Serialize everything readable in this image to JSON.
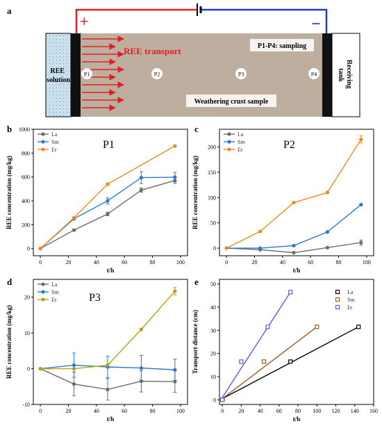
{
  "colors": {
    "la": "#6d6d6d",
    "sm": "#2a78d2",
    "er": "#f08a1c",
    "er_p3": "#b8a20a",
    "black": "#000000",
    "sm_e": "#9a5a22",
    "er_e": "#5a5ae6",
    "plus": "#e02020",
    "minus": "#1e3cc8"
  },
  "diagram": {
    "panel_label": "a",
    "plus": "+",
    "minus": "−",
    "ree_solution": "REE solution",
    "receiving_tank": "Receiving tank",
    "ree_transport": "REE transport",
    "sampling": "P1-P4: sampling",
    "sample": "Weathering crust sample",
    "points": [
      "P1",
      "P2",
      "P3",
      "P4"
    ]
  },
  "chart_data": [
    {
      "panel": "b",
      "type": "line",
      "title": "P1",
      "xlabel": "t/h",
      "ylabel": "REE concentration (mg/kg)",
      "xlim": [
        -5,
        105
      ],
      "ylim": [
        -60,
        1000
      ],
      "xticks": [
        0,
        20,
        40,
        60,
        80,
        100
      ],
      "yticks": [
        0,
        200,
        400,
        600,
        800,
        1000
      ],
      "legend": "top-left",
      "series": [
        {
          "name": "La",
          "x": [
            0,
            24,
            48,
            72,
            96
          ],
          "y": [
            0,
            155,
            290,
            490,
            570
          ],
          "err": [
            0,
            8,
            15,
            18,
            25
          ]
        },
        {
          "name": "Sm",
          "x": [
            0,
            24,
            48,
            72,
            96
          ],
          "y": [
            0,
            250,
            400,
            595,
            598
          ],
          "err": [
            0,
            10,
            25,
            50,
            40
          ]
        },
        {
          "name": "Er",
          "x": [
            0,
            24,
            48,
            72,
            96
          ],
          "y": [
            0,
            258,
            540,
            0,
            860
          ],
          "err": [
            0,
            8,
            10,
            0,
            8
          ],
          "skip": [
            3
          ]
        }
      ]
    },
    {
      "panel": "c",
      "type": "line",
      "title": "P2",
      "xlabel": "t/h",
      "ylabel": "REE concentration (mg/kg)",
      "xlim": [
        -5,
        105
      ],
      "ylim": [
        -15,
        235
      ],
      "xticks": [
        0,
        20,
        40,
        60,
        80,
        100
      ],
      "yticks": [
        0,
        50,
        100,
        150,
        200
      ],
      "legend": "top-left",
      "series": [
        {
          "name": "La",
          "x": [
            0,
            24,
            48,
            72,
            96
          ],
          "y": [
            0,
            -3,
            -9,
            1,
            11
          ],
          "err": [
            0,
            1,
            1,
            1,
            5
          ]
        },
        {
          "name": "Sm",
          "x": [
            0,
            24,
            48,
            72,
            96
          ],
          "y": [
            0,
            0,
            5,
            32,
            86
          ],
          "err": [
            0,
            1,
            1,
            1,
            2
          ]
        },
        {
          "name": "Er",
          "x": [
            0,
            24,
            48,
            72,
            96
          ],
          "y": [
            0,
            33,
            90,
            110,
            215
          ],
          "err": [
            0,
            1,
            1,
            1,
            7
          ]
        }
      ]
    },
    {
      "panel": "d",
      "type": "line",
      "title": "P3",
      "xlabel": "t/h",
      "ylabel": "REE concentration (mg/kg)",
      "xlim": [
        -5,
        105
      ],
      "ylim": [
        -10,
        25
      ],
      "xticks": [
        0,
        20,
        40,
        60,
        80,
        100
      ],
      "yticks": [
        -10,
        0,
        10,
        20
      ],
      "legend": "top-left",
      "series": [
        {
          "name": "La",
          "x": [
            0,
            24,
            48,
            72,
            96
          ],
          "y": [
            0,
            -4.3,
            -5.8,
            -3.5,
            -3.6
          ],
          "err": [
            0,
            3.3,
            3,
            3,
            3
          ]
        },
        {
          "name": "Sm",
          "x": [
            0,
            24,
            48,
            72,
            96
          ],
          "y": [
            0,
            1,
            0.5,
            0.2,
            -0.3
          ],
          "err": [
            0,
            3.4,
            3,
            3.5,
            3
          ]
        },
        {
          "name": "Er",
          "x": [
            0,
            24,
            48,
            72,
            96
          ],
          "y": [
            0,
            0,
            1,
            11,
            21.7
          ],
          "err": [
            0,
            0.2,
            0.3,
            0.3,
            1
          ]
        }
      ]
    },
    {
      "panel": "e",
      "type": "scatter",
      "title": "",
      "xlabel": "t/h",
      "ylabel": "Transport distance (cm)",
      "xlim": [
        -3,
        160
      ],
      "ylim": [
        -2,
        52
      ],
      "xticks": [
        0,
        20,
        40,
        60,
        80,
        100,
        120,
        140,
        160
      ],
      "yticks": [
        0,
        10,
        20,
        30,
        40,
        50
      ],
      "legend": "top-right",
      "series": [
        {
          "name": "La",
          "x": [
            0,
            72,
            144
          ],
          "y": [
            0,
            16.5,
            31.5
          ],
          "fit": [
            [
              0,
              0.5
            ],
            [
              144,
              31.5
            ]
          ]
        },
        {
          "name": "Sm",
          "x": [
            0,
            44,
            100
          ],
          "y": [
            0,
            16.5,
            31.5
          ],
          "fit": [
            [
              0,
              0.5
            ],
            [
              100,
              31.5
            ]
          ]
        },
        {
          "name": "Er",
          "x": [
            0,
            20,
            48,
            72
          ],
          "y": [
            0,
            16.5,
            31.5,
            46.5
          ],
          "fit": [
            [
              0,
              1
            ],
            [
              72,
              46.5
            ]
          ]
        }
      ]
    }
  ]
}
